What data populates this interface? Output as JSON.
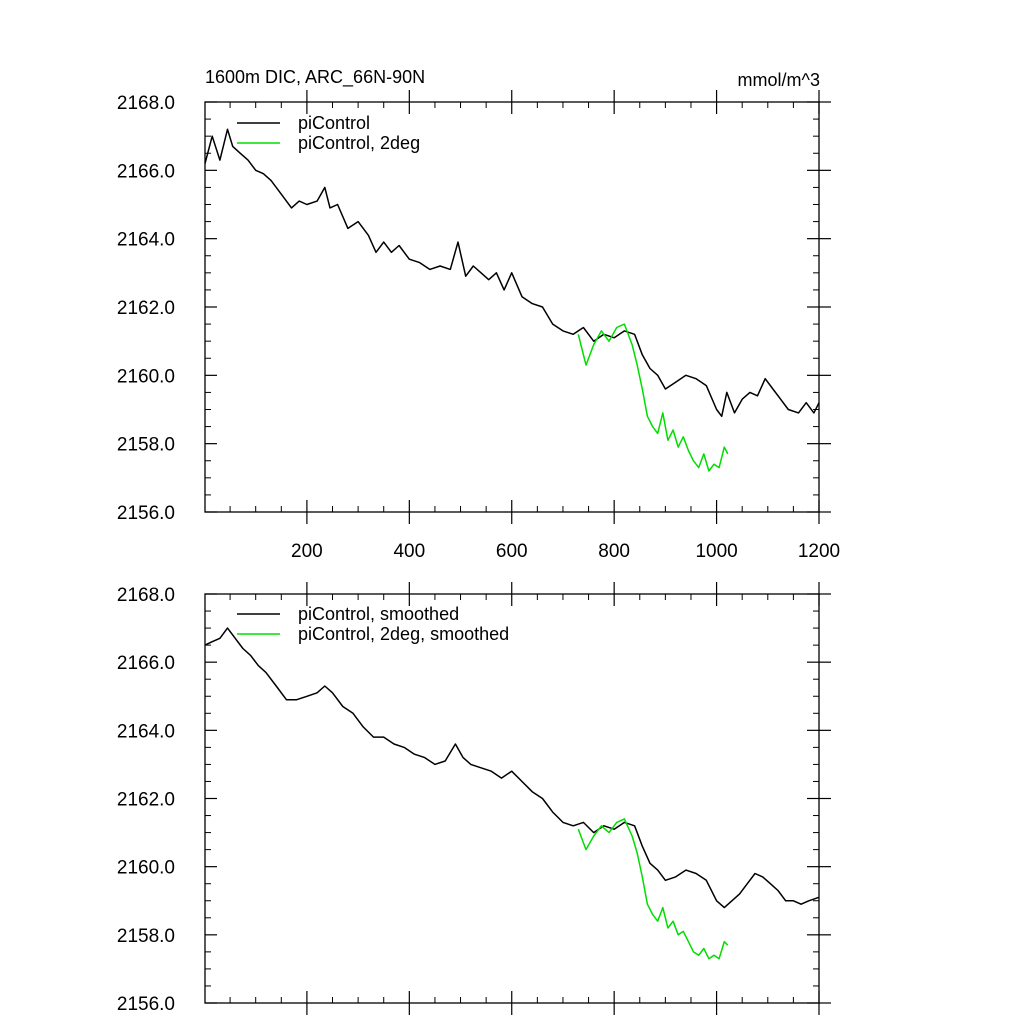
{
  "chart_data": [
    {
      "type": "line",
      "title": "1600m DIC, ARC_66N-90N",
      "units": "mmol/m^3",
      "xlim": [
        1,
        1200
      ],
      "ylim": [
        2156.0,
        2168.0
      ],
      "x_ticks": [
        200,
        400,
        600,
        800,
        1000,
        1200
      ],
      "x_tick_labels": [
        "200",
        "400",
        "600",
        "800",
        "1000",
        "1200"
      ],
      "y_ticks": [
        2156.0,
        2158.0,
        2160.0,
        2162.0,
        2164.0,
        2166.0,
        2168.0
      ],
      "y_tick_labels": [
        "2156.0",
        "2158.0",
        "2160.0",
        "2162.0",
        "2164.0",
        "2166.0",
        "2168.0"
      ],
      "legend_position": "top-left",
      "series": [
        {
          "name": "piControl",
          "color": "#000000",
          "x": [
            1,
            15,
            30,
            45,
            55,
            70,
            85,
            100,
            115,
            130,
            150,
            170,
            185,
            200,
            220,
            235,
            245,
            260,
            280,
            300,
            320,
            335,
            350,
            365,
            380,
            400,
            420,
            440,
            460,
            480,
            495,
            510,
            525,
            540,
            555,
            570,
            585,
            600,
            620,
            640,
            660,
            680,
            700,
            720,
            740,
            760,
            780,
            800,
            820,
            840,
            855,
            870,
            885,
            900,
            920,
            940,
            960,
            980,
            1000,
            1010,
            1020,
            1035,
            1050,
            1065,
            1080,
            1095,
            1110,
            1125,
            1140,
            1160,
            1175,
            1190,
            1200
          ],
          "values": [
            2166.2,
            2167.0,
            2166.3,
            2167.2,
            2166.7,
            2166.5,
            2166.3,
            2166.0,
            2165.9,
            2165.7,
            2165.3,
            2164.9,
            2165.1,
            2165.0,
            2165.1,
            2165.5,
            2164.9,
            2165.0,
            2164.3,
            2164.5,
            2164.1,
            2163.6,
            2163.9,
            2163.6,
            2163.8,
            2163.4,
            2163.3,
            2163.1,
            2163.2,
            2163.1,
            2163.9,
            2162.9,
            2163.2,
            2163.0,
            2162.8,
            2163.0,
            2162.5,
            2163.0,
            2162.3,
            2162.1,
            2162.0,
            2161.5,
            2161.3,
            2161.2,
            2161.4,
            2161.0,
            2161.2,
            2161.1,
            2161.3,
            2161.2,
            2160.6,
            2160.2,
            2160.0,
            2159.6,
            2159.8,
            2160.0,
            2159.9,
            2159.7,
            2159.0,
            2158.8,
            2159.5,
            2158.9,
            2159.3,
            2159.5,
            2159.4,
            2159.9,
            2159.6,
            2159.3,
            2159.0,
            2158.9,
            2159.2,
            2158.9,
            2159.2
          ]
        },
        {
          "name": "piControl, 2deg",
          "color": "#00dd00",
          "x": [
            730,
            745,
            760,
            775,
            790,
            805,
            820,
            835,
            845,
            855,
            865,
            875,
            885,
            895,
            905,
            915,
            925,
            935,
            945,
            955,
            965,
            975,
            985,
            995,
            1005,
            1015,
            1022
          ],
          "values": [
            2161.2,
            2160.3,
            2160.9,
            2161.3,
            2161.0,
            2161.4,
            2161.5,
            2160.9,
            2160.3,
            2159.6,
            2158.8,
            2158.5,
            2158.3,
            2158.9,
            2158.1,
            2158.4,
            2157.9,
            2158.2,
            2157.8,
            2157.5,
            2157.3,
            2157.7,
            2157.2,
            2157.4,
            2157.3,
            2157.9,
            2157.7
          ]
        }
      ]
    },
    {
      "type": "line",
      "title": "",
      "units": "",
      "xlim": [
        1,
        1200
      ],
      "ylim": [
        2156.0,
        2168.0
      ],
      "x_ticks": [
        200,
        400,
        600,
        800,
        1000,
        1200
      ],
      "x_tick_labels": [],
      "y_ticks": [
        2156.0,
        2158.0,
        2160.0,
        2162.0,
        2164.0,
        2166.0,
        2168.0
      ],
      "y_tick_labels": [
        "2156.0",
        "2158.0",
        "2160.0",
        "2162.0",
        "2164.0",
        "2166.0",
        "2168.0"
      ],
      "legend_position": "top-left",
      "series": [
        {
          "name": "piControl, smoothed",
          "color": "#000000",
          "x": [
            1,
            15,
            30,
            45,
            60,
            75,
            90,
            105,
            120,
            140,
            160,
            180,
            200,
            220,
            235,
            250,
            270,
            290,
            310,
            330,
            350,
            370,
            390,
            410,
            430,
            450,
            470,
            490,
            505,
            520,
            540,
            560,
            580,
            600,
            620,
            640,
            660,
            680,
            700,
            720,
            740,
            760,
            780,
            800,
            820,
            840,
            855,
            870,
            885,
            900,
            920,
            940,
            960,
            980,
            1000,
            1015,
            1030,
            1045,
            1060,
            1075,
            1090,
            1105,
            1120,
            1135,
            1150,
            1165,
            1180,
            1200
          ],
          "values": [
            2166.5,
            2166.6,
            2166.7,
            2167.0,
            2166.7,
            2166.4,
            2166.2,
            2165.9,
            2165.7,
            2165.3,
            2164.9,
            2164.9,
            2165.0,
            2165.1,
            2165.3,
            2165.1,
            2164.7,
            2164.5,
            2164.1,
            2163.8,
            2163.8,
            2163.6,
            2163.5,
            2163.3,
            2163.2,
            2163.0,
            2163.1,
            2163.6,
            2163.2,
            2163.0,
            2162.9,
            2162.8,
            2162.6,
            2162.8,
            2162.5,
            2162.2,
            2162.0,
            2161.6,
            2161.3,
            2161.2,
            2161.3,
            2161.0,
            2161.2,
            2161.1,
            2161.3,
            2161.2,
            2160.6,
            2160.1,
            2159.9,
            2159.6,
            2159.7,
            2159.9,
            2159.8,
            2159.6,
            2159.0,
            2158.8,
            2159.0,
            2159.2,
            2159.5,
            2159.8,
            2159.7,
            2159.5,
            2159.3,
            2159.0,
            2159.0,
            2158.9,
            2159.0,
            2159.1
          ]
        },
        {
          "name": "piControl, 2deg, smoothed",
          "color": "#00dd00",
          "x": [
            730,
            745,
            760,
            775,
            790,
            805,
            820,
            835,
            845,
            855,
            865,
            875,
            885,
            895,
            905,
            915,
            925,
            935,
            945,
            955,
            965,
            975,
            985,
            995,
            1005,
            1015,
            1022
          ],
          "values": [
            2161.1,
            2160.5,
            2160.9,
            2161.2,
            2161.0,
            2161.3,
            2161.4,
            2160.9,
            2160.4,
            2159.7,
            2158.9,
            2158.6,
            2158.4,
            2158.8,
            2158.2,
            2158.4,
            2158.0,
            2158.1,
            2157.8,
            2157.5,
            2157.4,
            2157.6,
            2157.3,
            2157.4,
            2157.3,
            2157.8,
            2157.7
          ]
        }
      ]
    }
  ]
}
